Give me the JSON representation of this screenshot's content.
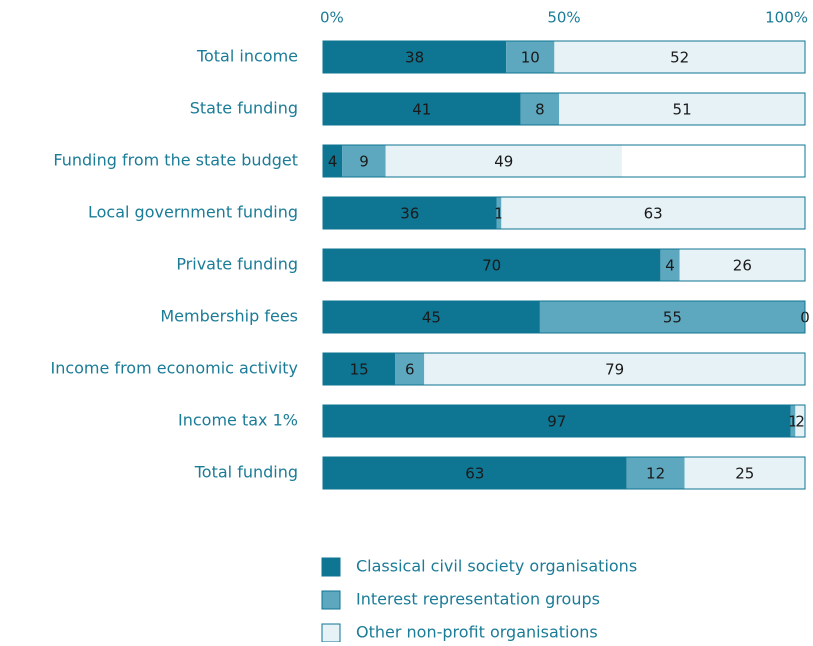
{
  "chart_data": {
    "type": "stacked_barh",
    "categories": [
      "Total income",
      "State funding",
      "Funding from the state budget",
      "Local government funding",
      "Private funding",
      "Membership fees",
      "Income from economic activity",
      "Income tax 1%",
      "Total funding"
    ],
    "series": [
      {
        "name": "Classical civil society organisations",
        "color": "#0e7592",
        "values": [
          38,
          41,
          4,
          36,
          70,
          45,
          15,
          97,
          63
        ]
      },
      {
        "name": "Interest representation groups",
        "color": "#5ea8bf",
        "values": [
          10,
          8,
          9,
          1,
          4,
          55,
          6,
          1,
          12
        ]
      },
      {
        "name": "Other non-profit organisations",
        "color": "#e7f2f7",
        "values": [
          52,
          51,
          49,
          63,
          26,
          0,
          79,
          2,
          25
        ]
      }
    ],
    "xlim": [
      0,
      100
    ],
    "xticks": [
      {
        "value": 0,
        "label": "0%"
      },
      {
        "value": 50,
        "label": "50%"
      },
      {
        "value": 100,
        "label": "100%"
      }
    ]
  }
}
